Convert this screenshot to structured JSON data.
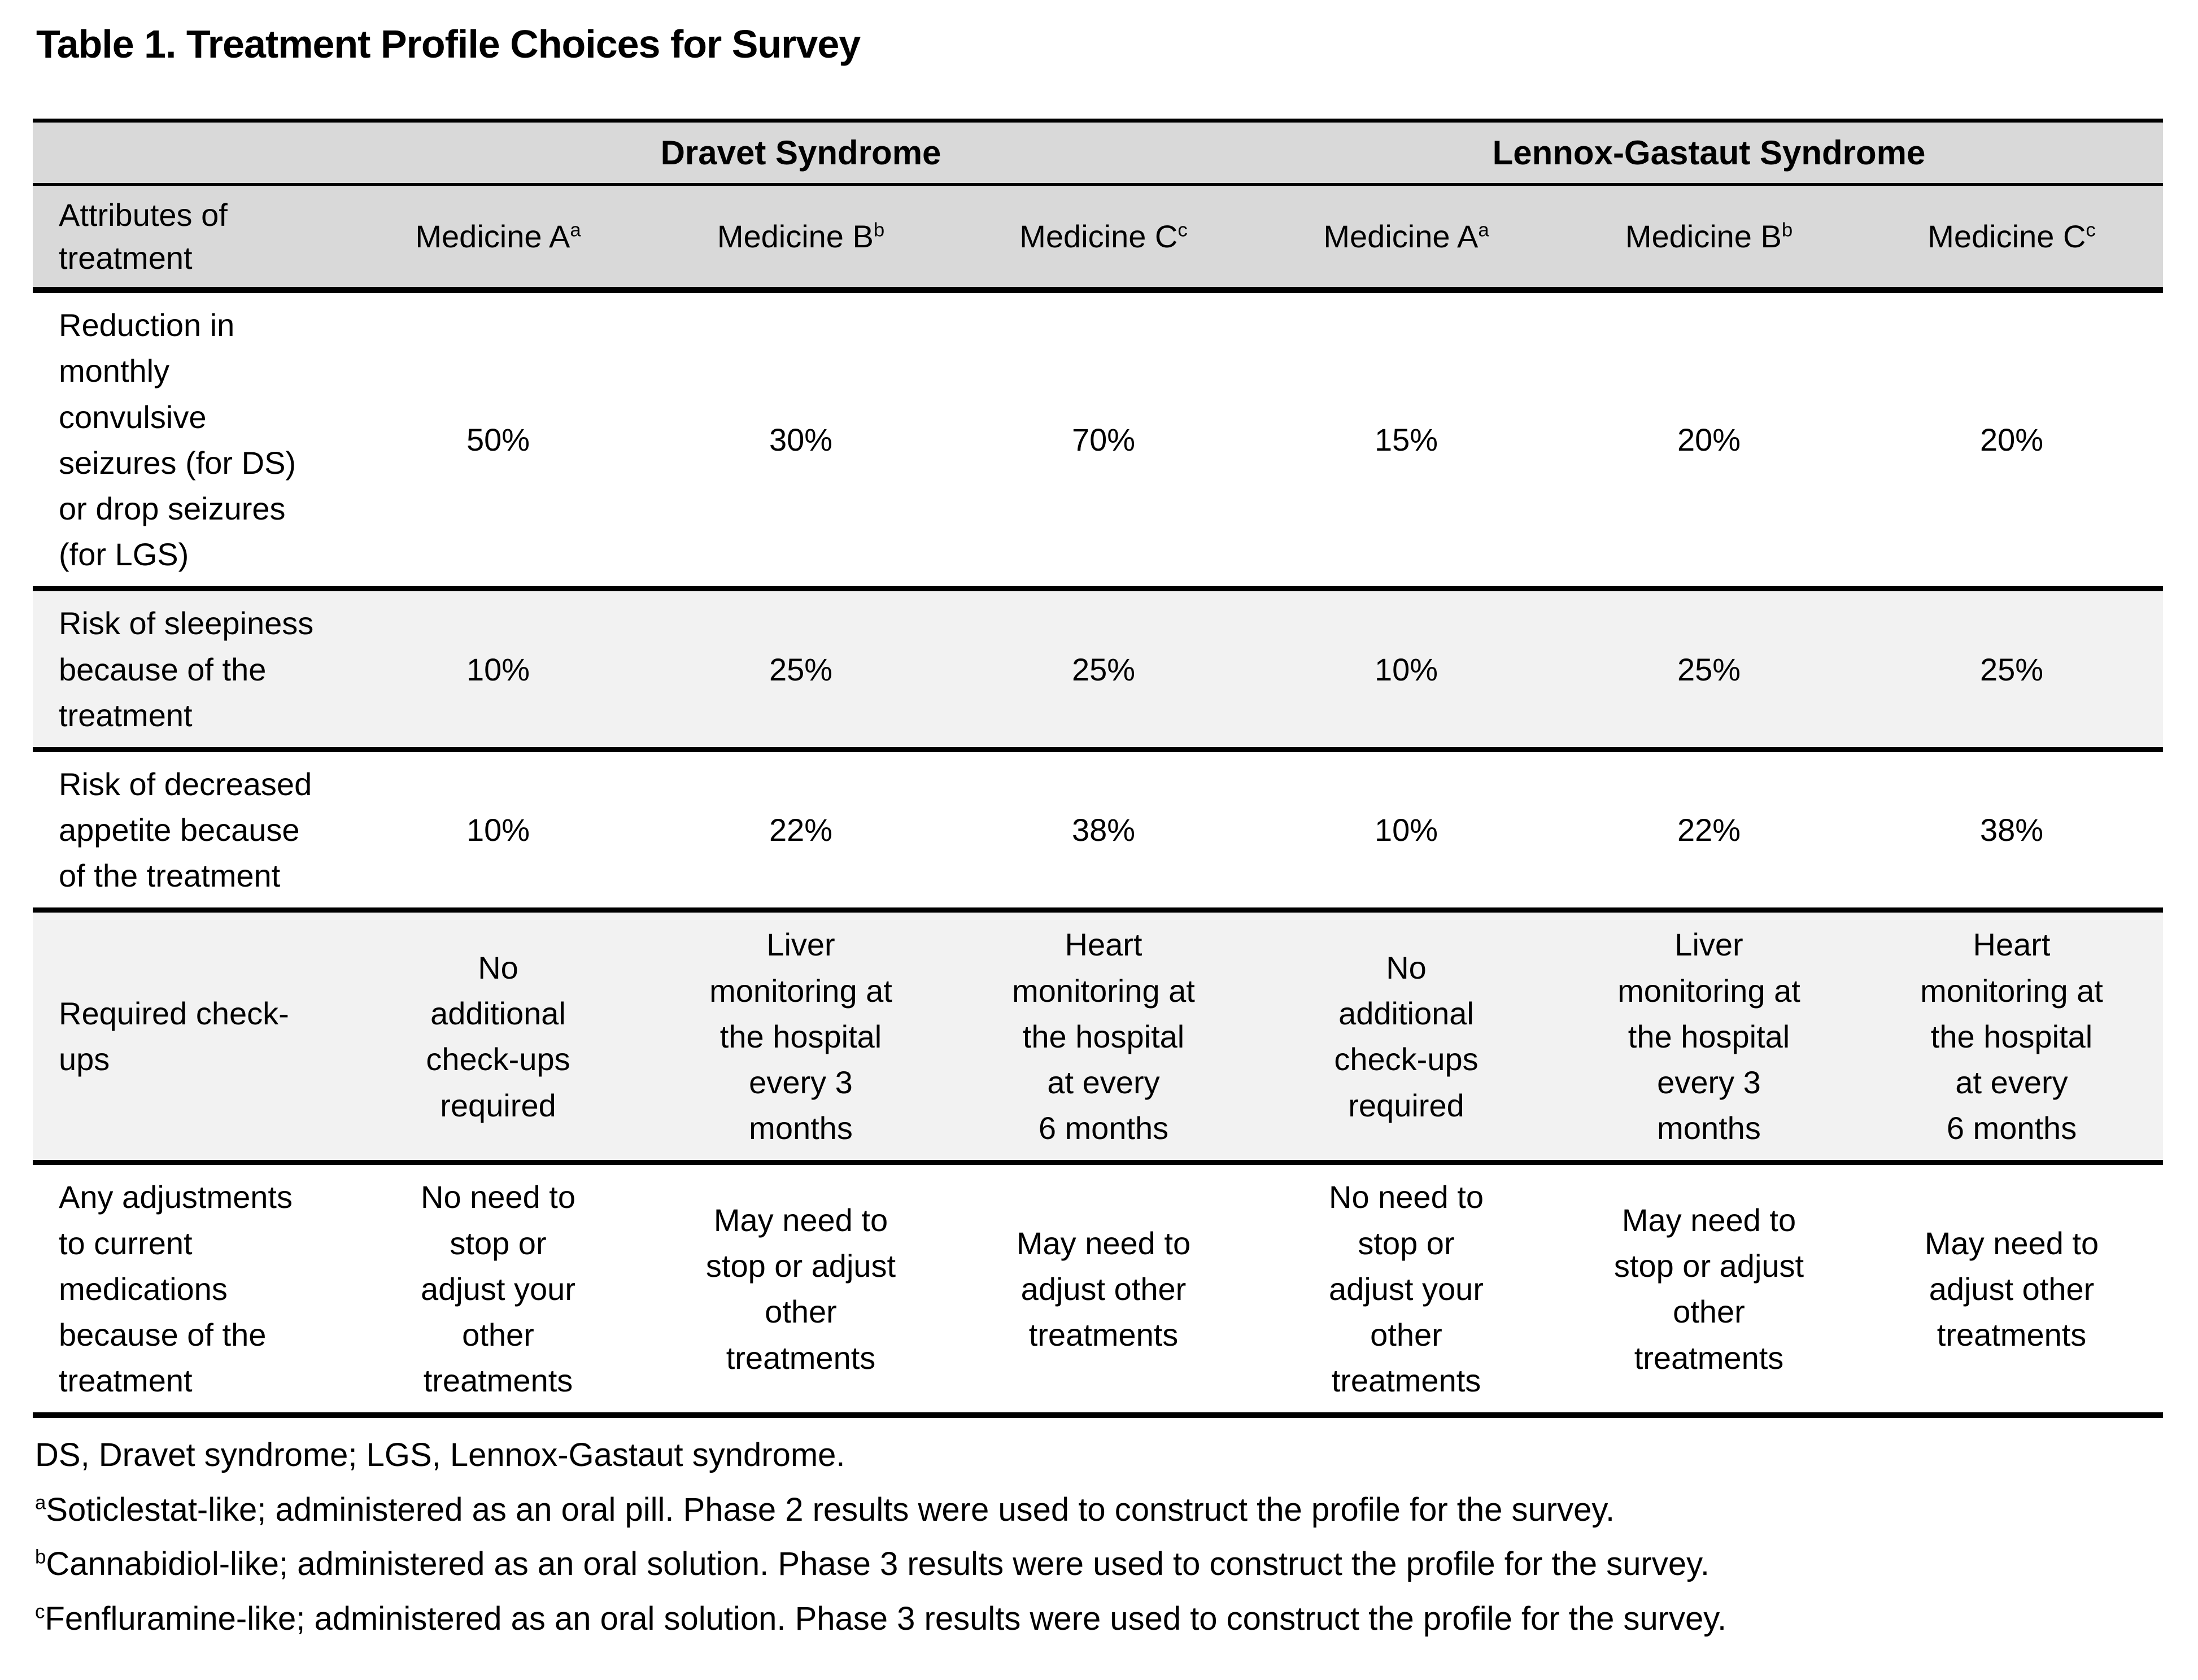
{
  "page": {
    "title": "Table 1. Treatment Profile Choices for Survey"
  },
  "colors": {
    "header_bg": "#d9d9d9",
    "shaded_row_bg": "#f2f2f2",
    "border": "#000000",
    "text": "#000000",
    "page_bg": "#ffffff"
  },
  "table": {
    "corner_label": "Attributes of\ntreatment",
    "groups": [
      {
        "label": "Dravet Syndrome"
      },
      {
        "label": "Lennox-Gastaut Syndrome"
      }
    ],
    "medicines": [
      {
        "name": "Medicine A",
        "sup": "a"
      },
      {
        "name": "Medicine B",
        "sup": "b"
      },
      {
        "name": "Medicine C",
        "sup": "c"
      },
      {
        "name": "Medicine A",
        "sup": "a"
      },
      {
        "name": "Medicine B",
        "sup": "b"
      },
      {
        "name": "Medicine C",
        "sup": "c"
      }
    ],
    "rows": [
      {
        "attribute": "Reduction in\nmonthly\nconvulsive\nseizures (for DS)\nor drop seizures\n(for LGS)",
        "values": [
          "50%",
          "30%",
          "70%",
          "15%",
          "20%",
          "20%"
        ]
      },
      {
        "attribute": "Risk of sleepiness\nbecause of the\ntreatment",
        "values": [
          "10%",
          "25%",
          "25%",
          "10%",
          "25%",
          "25%"
        ]
      },
      {
        "attribute": "Risk of decreased\nappetite because\nof the treatment",
        "values": [
          "10%",
          "22%",
          "38%",
          "10%",
          "22%",
          "38%"
        ]
      },
      {
        "attribute": "Required check-\nups",
        "values": [
          "No\nadditional\ncheck-ups\nrequired",
          "Liver\nmonitoring at\nthe hospital\nevery 3\nmonths",
          "Heart\nmonitoring at\nthe hospital\nat every\n6 months",
          "No\nadditional\ncheck-ups\nrequired",
          "Liver\nmonitoring at\nthe hospital\nevery 3\nmonths",
          "Heart\nmonitoring at\nthe hospital\nat every\n6 months"
        ]
      },
      {
        "attribute": "Any adjustments\nto current\nmedications\nbecause of the\ntreatment",
        "values": [
          "No need to\nstop or\nadjust your\nother\ntreatments",
          "May need to\nstop or adjust\nother\ntreatments",
          "May need to\nadjust other\ntreatments",
          "No need to\nstop or\nadjust your\nother\ntreatments",
          "May need to\nstop or adjust\nother\ntreatments",
          "May need to\nadjust other\ntreatments"
        ]
      }
    ]
  },
  "footnotes": [
    {
      "sup": "",
      "text": "DS, Dravet syndrome; LGS, Lennox-Gastaut syndrome."
    },
    {
      "sup": "a",
      "text": "Soticlestat-like; administered as an oral pill. Phase 2 results were used to construct the profile for the survey."
    },
    {
      "sup": "b",
      "text": "Cannabidiol-like; administered as an oral solution. Phase 3 results were used to construct the profile for the survey."
    },
    {
      "sup": "c",
      "text": "Fenfluramine-like; administered as an oral solution. Phase 3 results were used to construct the profile for the survey."
    }
  ]
}
